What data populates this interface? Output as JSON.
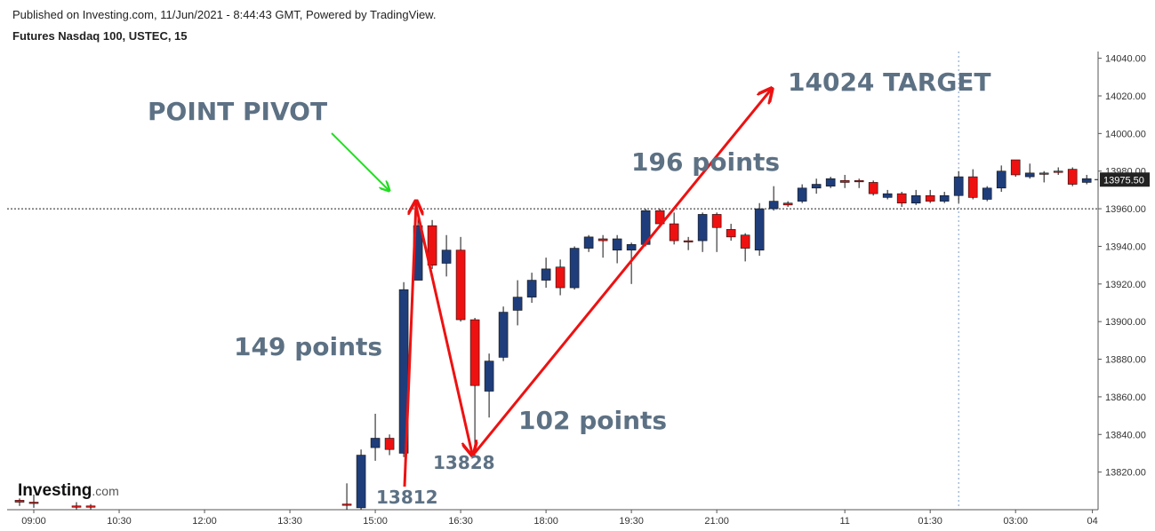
{
  "header": {
    "published": "Published on Investing.com, 11/Jun/2021 - 8:44:43 GMT, Powered by TradingView.",
    "instrument": "Futures Nasdaq 100, USTEC, 15"
  },
  "logo": {
    "name": "Investing",
    "suffix": ".com"
  },
  "annotations": {
    "pivot": "POINT PIVOT",
    "target": "14024 TARGET",
    "rise2": "196 points",
    "rise1": "149 points",
    "drop": "102 points",
    "low": "13828",
    "start": "13812"
  },
  "chart_data": {
    "type": "candlestick",
    "x": [
      -1,
      0,
      3,
      4,
      22,
      23,
      24,
      25,
      26,
      27,
      28,
      29,
      30,
      31,
      32,
      33,
      34,
      35,
      36,
      37,
      38,
      39,
      40,
      41,
      42,
      43,
      44,
      45,
      46,
      47,
      48,
      49,
      50,
      51,
      52,
      53,
      54,
      55,
      56,
      57,
      58,
      59,
      60,
      61,
      62,
      63,
      64,
      65,
      66,
      67,
      68,
      69,
      70,
      71,
      72,
      73,
      74
    ],
    "open": [
      13805,
      13804,
      13802,
      13802,
      13803,
      13801,
      13833,
      13838,
      13830,
      13922,
      13951,
      13931,
      13938,
      13901,
      13863,
      13881,
      13906,
      13913,
      13922,
      13929,
      13918,
      13939,
      13944,
      13938,
      13938,
      13941,
      13959,
      13952,
      13943,
      13943,
      13957,
      13949,
      13946,
      13938,
      13960,
      13963,
      13964,
      13971,
      13972,
      13975,
      13975,
      13974,
      13966,
      13968,
      13963,
      13967,
      13964,
      13967,
      13977,
      13965,
      13971,
      13986,
      13977,
      13979,
      13980,
      13981,
      13974
    ],
    "high": [
      13806,
      13808,
      13804,
      13803,
      13814,
      13832,
      13851,
      13840,
      13921,
      13958,
      13954,
      13946,
      13945,
      13902,
      13883,
      13908,
      13922,
      13926,
      13934,
      13933,
      13940,
      13946,
      13946,
      13946,
      13942,
      13960,
      13960,
      13958,
      13945,
      13958,
      13958,
      13952,
      13947,
      13963,
      13972,
      13964,
      13973,
      13976,
      13977,
      13978,
      13976,
      13975,
      13970,
      13969,
      13970,
      13970,
      13969,
      13980,
      13981,
      13972,
      13983,
      13986,
      13984,
      13980,
      13982,
      13982,
      13978
    ],
    "low": [
      13802,
      13801,
      13800,
      13800,
      13800,
      13800,
      13826,
      13829,
      13828,
      13922,
      13928,
      13924,
      13900,
      13828,
      13849,
      13879,
      13898,
      13910,
      13918,
      13914,
      13917,
      13937,
      13934,
      13931,
      13920,
      13940,
      13950,
      13941,
      13938,
      13937,
      13937,
      13943,
      13932,
      13935,
      13959,
      13961,
      13963,
      13968,
      13971,
      13971,
      13971,
      13967,
      13965,
      13961,
      13962,
      13963,
      13963,
      13963,
      13965,
      13964,
      13969,
      13977,
      13976,
      13974,
      13978,
      13972,
      13973
    ],
    "close": [
      13804,
      13804,
      13802,
      13802,
      13803,
      13829,
      13838,
      13832,
      13917,
      13951,
      13930,
      13938,
      13901,
      13866,
      13879,
      13905,
      13913,
      13922,
      13928,
      13918,
      13939,
      13945,
      13943,
      13944,
      13941,
      13959,
      13952,
      13943,
      13943,
      13957,
      13950,
      13945,
      13939,
      13960,
      13964,
      13962,
      13971,
      13973,
      13976,
      13974,
      13975,
      13968,
      13968,
      13963,
      13967,
      13964,
      13967,
      13977,
      13966,
      13971,
      13980,
      13978,
      13979,
      13979,
      13980,
      13973,
      13976
    ],
    "up_color": "#1f3d7a",
    "down_color": "#ee1111",
    "xlim": [
      -1.875,
      74.8
    ],
    "ylim": [
      13800,
      14043.6
    ],
    "xticks": [
      {
        "value": 0,
        "label": "09:00"
      },
      {
        "value": 6,
        "label": "10:30"
      },
      {
        "value": 12,
        "label": "12:00"
      },
      {
        "value": 18,
        "label": "13:30"
      },
      {
        "value": 24,
        "label": "15:00"
      },
      {
        "value": 30,
        "label": "16:30"
      },
      {
        "value": 36,
        "label": "18:00"
      },
      {
        "value": 42,
        "label": "19:30"
      },
      {
        "value": 48,
        "label": "21:00"
      },
      {
        "value": 57,
        "label": "11"
      },
      {
        "value": 63,
        "label": "01:30"
      },
      {
        "value": 69,
        "label": "03:00"
      },
      {
        "value": 74.4,
        "label": "04"
      }
    ],
    "yticks": [
      {
        "value": 13820,
        "label": "13820.00"
      },
      {
        "value": 13840,
        "label": "13840.00"
      },
      {
        "value": 13860,
        "label": "13860.00"
      },
      {
        "value": 13880,
        "label": "13880.00"
      },
      {
        "value": 13900,
        "label": "13900.00"
      },
      {
        "value": 13920,
        "label": "13920.00"
      },
      {
        "value": 13940,
        "label": "13940.00"
      },
      {
        "value": 13960,
        "label": "13960.00"
      },
      {
        "value": 13980,
        "label": "13980.00"
      },
      {
        "value": 14000,
        "label": "14000.00"
      },
      {
        "value": 14020,
        "label": "14020.00"
      },
      {
        "value": 14040,
        "label": "14040.00"
      }
    ],
    "reference_line": 13960,
    "session_line_x": 65,
    "last_price": {
      "value": 13975.5,
      "label": "13975.50"
    }
  }
}
